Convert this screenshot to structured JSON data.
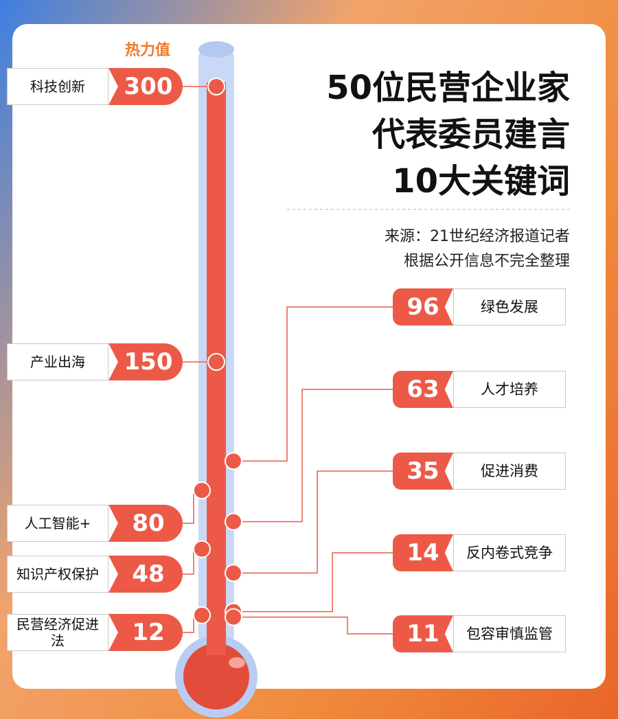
{
  "chart_data": {
    "type": "thermometer",
    "title": [
      "50位民营企业家",
      "代表委员建言",
      "10大关键词"
    ],
    "source": [
      "来源：21世纪经济报道记者",
      "根据公开信息不完全整理"
    ],
    "axis_label": "热力值",
    "ylim": [
      0,
      300
    ],
    "color": "#ec5a47",
    "groups": [
      {
        "categories": [
          "科技创新",
          "产业出海",
          "人工智能+",
          "知识产权保护",
          "民营经济促进法"
        ],
        "values": [
          300,
          150,
          80,
          48,
          12
        ]
      },
      {
        "categories": [
          "绿色发展",
          "人才培养",
          "促进消费",
          "反内卷式竞争",
          "包容审慎监管"
        ],
        "values": [
          96,
          63,
          35,
          14,
          11
        ]
      }
    ]
  }
}
